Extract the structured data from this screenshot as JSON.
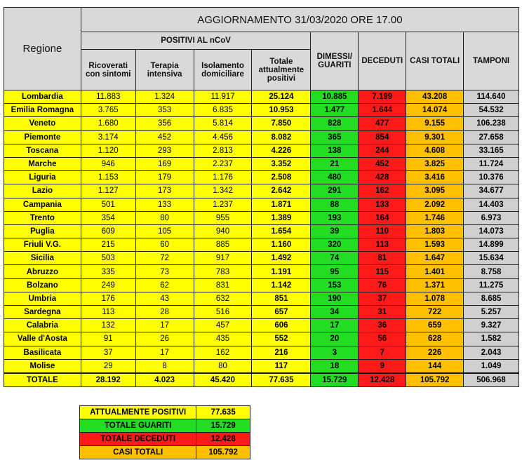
{
  "title": "AGGIORNAMENTO 31/03/2020 ORE 17.00",
  "headers": {
    "regione": "Regione",
    "positivi": "POSITIVI AL nCoV",
    "ricoverati": "Ricoverati con sintomi",
    "terapia": "Terapia intensiva",
    "isolamento": "Isolamento domiciliare",
    "totale_positivi": "Totale attualmente positivi",
    "dimessi": "DIMESSI/ GUARITI",
    "deceduti": "DECEDUTI",
    "casi": "CASI TOTALI",
    "tamponi": "TAMPONI"
  },
  "colors": {
    "positivi": "#ffff00",
    "guariti": "#22dd22",
    "deceduti": "#ff1a1a",
    "casi": "#ffc000",
    "tamponi": "#d0d0d0",
    "header": "#d9d9d9"
  },
  "rows": [
    [
      "Lombardia",
      "11.883",
      "1.324",
      "11.917",
      "25.124",
      "10.885",
      "7.199",
      "43.208",
      "114.640"
    ],
    [
      "Emilia Romagna",
      "3.765",
      "353",
      "6.835",
      "10.953",
      "1.477",
      "1.644",
      "14.074",
      "54.532"
    ],
    [
      "Veneto",
      "1.680",
      "356",
      "5.814",
      "7.850",
      "828",
      "477",
      "9.155",
      "106.238"
    ],
    [
      "Piemonte",
      "3.174",
      "452",
      "4.456",
      "8.082",
      "365",
      "854",
      "9.301",
      "27.658"
    ],
    [
      "Toscana",
      "1.120",
      "293",
      "2.813",
      "4.226",
      "138",
      "244",
      "4.608",
      "33.165"
    ],
    [
      "Marche",
      "946",
      "169",
      "2.237",
      "3.352",
      "21",
      "452",
      "3.825",
      "11.724"
    ],
    [
      "Liguria",
      "1.153",
      "179",
      "1.176",
      "2.508",
      "480",
      "428",
      "3.416",
      "10.376"
    ],
    [
      "Lazio",
      "1.127",
      "173",
      "1.342",
      "2.642",
      "291",
      "162",
      "3.095",
      "34.677"
    ],
    [
      "Campania",
      "501",
      "133",
      "1.237",
      "1.871",
      "88",
      "133",
      "2.092",
      "14.403"
    ],
    [
      "Trento",
      "354",
      "80",
      "955",
      "1.389",
      "193",
      "164",
      "1.746",
      "6.973"
    ],
    [
      "Puglia",
      "609",
      "105",
      "940",
      "1.654",
      "39",
      "110",
      "1.803",
      "14.073"
    ],
    [
      "Friuli V.G.",
      "215",
      "60",
      "885",
      "1.160",
      "320",
      "113",
      "1.593",
      "14.899"
    ],
    [
      "Sicilia",
      "503",
      "72",
      "917",
      "1.492",
      "74",
      "81",
      "1.647",
      "15.634"
    ],
    [
      "Abruzzo",
      "335",
      "73",
      "783",
      "1.191",
      "95",
      "115",
      "1.401",
      "8.758"
    ],
    [
      "Bolzano",
      "249",
      "62",
      "831",
      "1.142",
      "153",
      "76",
      "1.371",
      "11.275"
    ],
    [
      "Umbria",
      "176",
      "43",
      "632",
      "851",
      "190",
      "37",
      "1.078",
      "8.685"
    ],
    [
      "Sardegna",
      "113",
      "28",
      "516",
      "657",
      "34",
      "31",
      "722",
      "5.257"
    ],
    [
      "Calabria",
      "132",
      "17",
      "457",
      "606",
      "17",
      "36",
      "659",
      "9.327"
    ],
    [
      "Valle d'Aosta",
      "91",
      "26",
      "435",
      "552",
      "20",
      "56",
      "628",
      "1.582"
    ],
    [
      "Basilicata",
      "37",
      "17",
      "162",
      "216",
      "3",
      "7",
      "226",
      "2.043"
    ],
    [
      "Molise",
      "29",
      "8",
      "80",
      "117",
      "18",
      "9",
      "144",
      "1.049"
    ]
  ],
  "total": [
    "TOTALE",
    "28.192",
    "4.023",
    "45.420",
    "77.635",
    "15.729",
    "12.428",
    "105.792",
    "506.968"
  ],
  "summary": [
    {
      "label": "ATTUALMENTE POSITIVI",
      "value": "77.635"
    },
    {
      "label": "TOTALE GUARITI",
      "value": "15.729"
    },
    {
      "label": "TOTALE DECEDUTI",
      "value": "12.428"
    },
    {
      "label": "CASI TOTALI",
      "value": "105.792"
    }
  ]
}
